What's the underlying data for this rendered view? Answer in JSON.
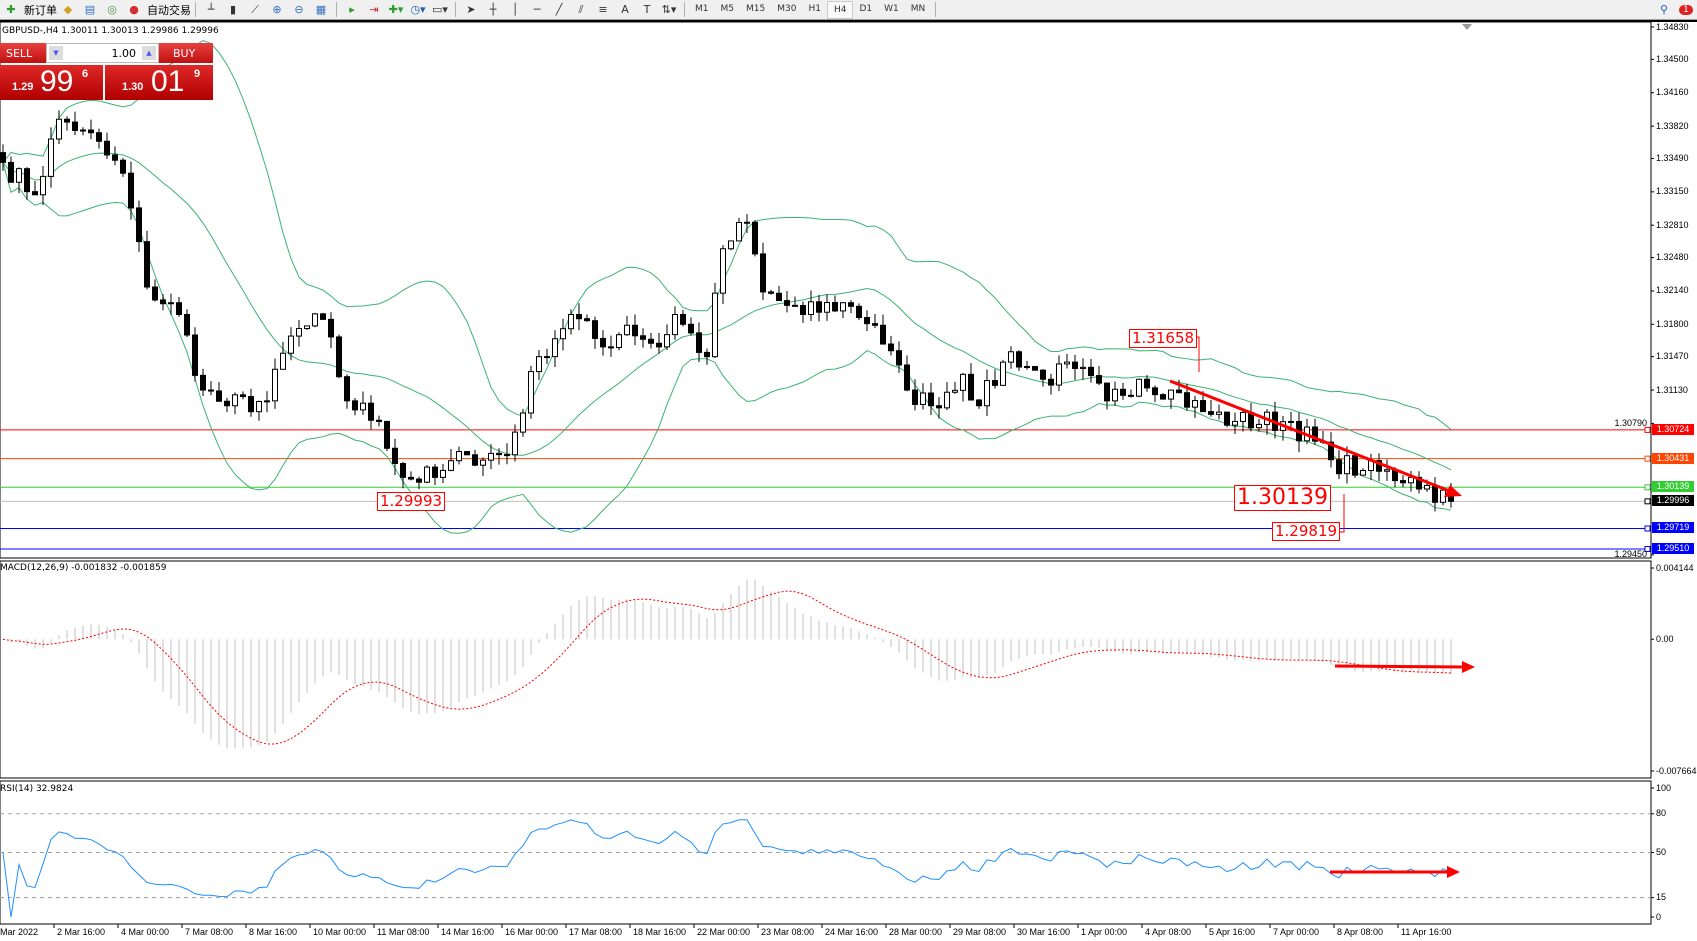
{
  "toolbar": {
    "new_order_label": "新订单",
    "auto_trade_label": "自动交易",
    "timeframes": [
      "M1",
      "M5",
      "M15",
      "M30",
      "H1",
      "H4",
      "D1",
      "W1",
      "MN"
    ],
    "selected_timeframe": "H4",
    "notification_count": "1"
  },
  "chart": {
    "title": "GBPUSD-,H4  1.30011 1.30013 1.29986 1.29996",
    "price_ticks": [
      "1.34830",
      "1.34500",
      "1.34160",
      "1.33820",
      "1.33490",
      "1.33150",
      "1.32810",
      "1.32480",
      "1.32140",
      "1.31800",
      "1.31470",
      "1.31130",
      "1.30790",
      "1.29450"
    ],
    "time_labels": [
      "Mar 2022",
      "2 Mar 16:00",
      "4 Mar 00:00",
      "7 Mar 08:00",
      "8 Mar 16:00",
      "10 Mar 00:00",
      "11 Mar 08:00",
      "14 Mar 16:00",
      "16 Mar 00:00",
      "17 Mar 08:00",
      "18 Mar 16:00",
      "22 Mar 00:00",
      "23 Mar 08:00",
      "24 Mar 16:00",
      "28 Mar 00:00",
      "29 Mar 08:00",
      "30 Mar 16:00",
      "1 Apr 00:00",
      "4 Apr 08:00",
      "5 Apr 16:00",
      "7 Apr 00:00",
      "8 Apr 08:00",
      "11 Apr 16:00"
    ],
    "hlines": [
      {
        "price": "1.30724",
        "color": "#ff0000"
      },
      {
        "price": "1.30431",
        "color": "#ff4500"
      },
      {
        "price": "1.30139",
        "color": "#32cd32"
      },
      {
        "price": "1.29996",
        "color": "#000000",
        "line": "#c0c0c0"
      },
      {
        "price": "1.29719",
        "color": "#0000ff"
      },
      {
        "price": "1.29510",
        "color": "#0000ff"
      }
    ],
    "annotations": [
      "1.31658",
      "1.30139",
      "1.29819",
      "1.29993"
    ],
    "price_path": [
      [
        0,
        1.3345
      ],
      [
        4,
        1.3312
      ],
      [
        7,
        1.3389
      ],
      [
        10,
        1.3378
      ],
      [
        15,
        1.3334
      ],
      [
        18,
        1.3218
      ],
      [
        22,
        1.319
      ],
      [
        25,
        1.3113
      ],
      [
        28,
        1.3097
      ],
      [
        33,
        1.3102
      ],
      [
        36,
        1.3168
      ],
      [
        40,
        1.3185
      ],
      [
        43,
        1.3102
      ],
      [
        47,
        1.3081
      ],
      [
        50,
        1.3024
      ],
      [
        54,
        1.3024
      ],
      [
        58,
        1.3047
      ],
      [
        63,
        1.3047
      ],
      [
        67,
        1.3147
      ],
      [
        71,
        1.319
      ],
      [
        75,
        1.3157
      ],
      [
        78,
        1.3179
      ],
      [
        82,
        1.3157
      ],
      [
        84,
        1.319
      ],
      [
        88,
        1.3147
      ],
      [
        90,
        1.3257
      ],
      [
        93,
        1.3284
      ],
      [
        95,
        1.3213
      ],
      [
        100,
        1.319
      ],
      [
        105,
        1.3202
      ],
      [
        109,
        1.3179
      ],
      [
        113,
        1.3113
      ],
      [
        116,
        1.3097
      ],
      [
        120,
        1.3129
      ],
      [
        122,
        1.3097
      ],
      [
        126,
        1.3152
      ],
      [
        130,
        1.3124
      ],
      [
        134,
        1.3135
      ],
      [
        138,
        1.3102
      ],
      [
        142,
        1.3124
      ],
      [
        146,
        1.3113
      ],
      [
        150,
        1.3091
      ],
      [
        154,
        1.3081
      ],
      [
        161,
        1.3081
      ],
      [
        166,
        1.3042
      ],
      [
        170,
        1.3031
      ],
      [
        176,
        1.3024
      ],
      [
        181,
        1.29996
      ]
    ],
    "colors": {
      "bands": "#3cb371",
      "trend_arrow": "#ff0000"
    }
  },
  "trade_panel": {
    "sell_label": "SELL",
    "buy_label": "BUY",
    "lot": "1.00",
    "sell_price": {
      "prefix": "1.29",
      "big": "99",
      "sup": "6"
    },
    "buy_price": {
      "prefix": "1.30",
      "big": "01",
      "sup": "9"
    }
  },
  "macd": {
    "label": "MACD(12,26,9) -0.001832 -0.001859",
    "ticks": [
      "0.004144",
      "0.00",
      "-0.007664"
    ],
    "range": [
      -0.007664,
      0.004144
    ],
    "colors": {
      "histogram": "#c0c0c0",
      "signal": "#ff0000"
    }
  },
  "rsi": {
    "label": "RSI(14) 32.9824",
    "ticks": [
      "100",
      "80",
      "50",
      "15",
      "0"
    ],
    "color": "#1e90ff"
  }
}
